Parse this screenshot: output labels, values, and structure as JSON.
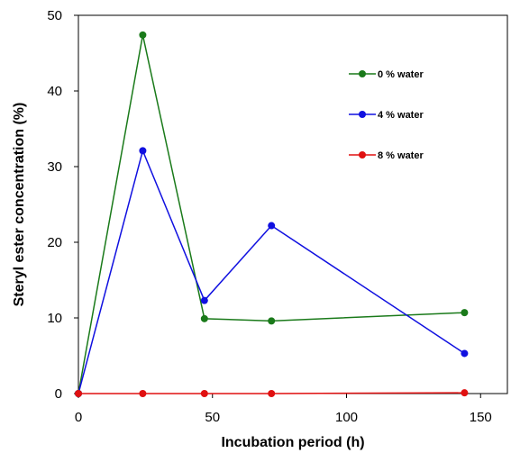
{
  "chart_data": {
    "type": "line",
    "xlabel": "Incubation period (h)",
    "ylabel": "Steryl ester concentration (%)",
    "xlim": [
      0,
      160
    ],
    "ylim": [
      0,
      50
    ],
    "xticks": [
      0,
      50,
      100,
      150
    ],
    "yticks": [
      0,
      10,
      20,
      30,
      40,
      50
    ],
    "grid": false,
    "legend_position": "top-right",
    "series": [
      {
        "name": "0 % water",
        "color": "#1a7a1a",
        "x": [
          0,
          24,
          47,
          72,
          144
        ],
        "y": [
          0,
          47.4,
          9.9,
          9.6,
          10.7
        ]
      },
      {
        "name": "4 % water",
        "color": "#1010e0",
        "x": [
          0,
          24,
          47,
          72,
          144
        ],
        "y": [
          0,
          32.1,
          12.3,
          22.2,
          5.3
        ]
      },
      {
        "name": "8 % water",
        "color": "#e01010",
        "x": [
          0,
          24,
          47,
          72,
          144
        ],
        "y": [
          0,
          0,
          0,
          0,
          0.1
        ]
      }
    ]
  }
}
